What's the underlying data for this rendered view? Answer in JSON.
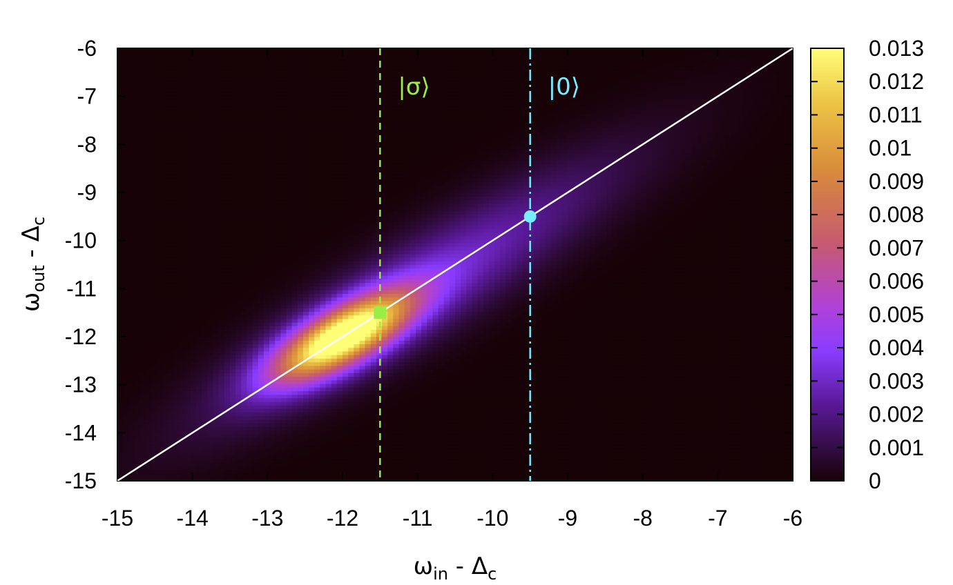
{
  "chart_data": {
    "type": "heatmap",
    "xlabel": {
      "base": "ω",
      "sub": "in",
      "rest": " - Δ",
      "sub2": "c"
    },
    "ylabel": {
      "base": "ω",
      "sub": "out",
      "rest": " - Δ",
      "sub2": "c"
    },
    "xlim": [
      -15,
      -6
    ],
    "ylim": [
      -15,
      -6
    ],
    "x_ticks": [
      "-15",
      "-14",
      "-13",
      "-12",
      "-11",
      "-10",
      "-9",
      "-8",
      "-7",
      "-6"
    ],
    "y_ticks": [
      "-6",
      "-7",
      "-8",
      "-9",
      "-10",
      "-11",
      "-12",
      "-13",
      "-14",
      "-15"
    ],
    "colorbar": {
      "range": [
        0,
        0.013
      ],
      "ticks": [
        "0.013",
        "0.012",
        "0.011",
        "0.01",
        "0.009",
        "0.008",
        "0.007",
        "0.006",
        "0.005",
        "0.004",
        "0.003",
        "0.002",
        "0.001",
        "0"
      ]
    },
    "distribution": {
      "peak_value": 0.013,
      "peak_center": [
        -12.0,
        -12.0
      ],
      "orientation": "elongated along the diagonal ω_out = ω_in"
    },
    "diagonal_line": {
      "from": [
        -15,
        -15
      ],
      "to": [
        -6,
        -6
      ],
      "color": "#ffffff"
    },
    "markers": [
      {
        "label": "|σ⟩",
        "x": -11.5,
        "y": -11.5,
        "shape": "square",
        "line_style": "dashed",
        "color": "#99ee44"
      },
      {
        "label": "|0⟩",
        "x": -9.5,
        "y": -9.5,
        "shape": "circle",
        "line_style": "dash-dot",
        "color": "#77eeff"
      }
    ],
    "grid": false
  }
}
